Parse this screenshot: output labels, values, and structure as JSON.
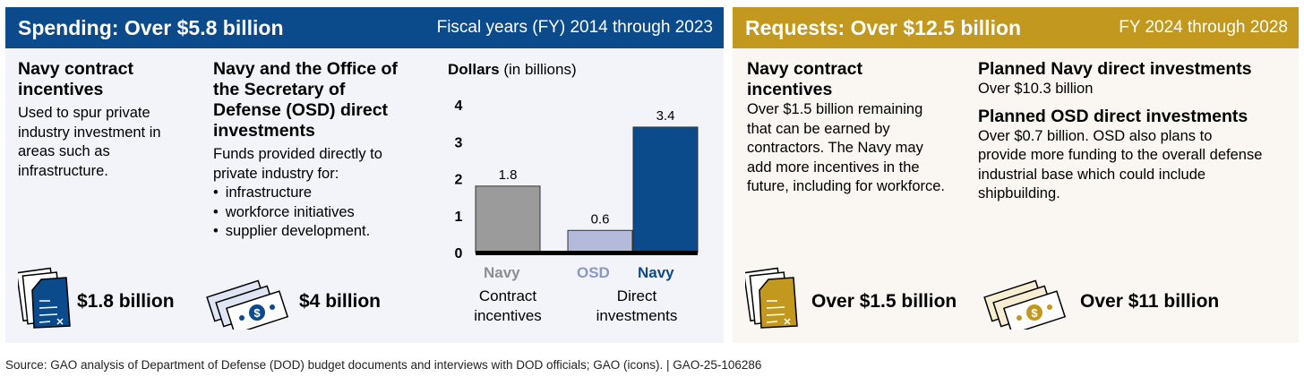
{
  "spending": {
    "title": "Spending: Over $5.8 billion",
    "subtitle": "Fiscal years (FY) 2014 through 2023",
    "incentives": {
      "heading": "Navy contract incentives",
      "text": "Used to spur private industry investment in areas such as infrastructure.",
      "amount": "$1.8 billion",
      "icon": "contract-document-icon"
    },
    "direct": {
      "heading": "Navy and the Office of the Secretary of Defense (OSD) direct investments",
      "intro": "Funds provided directly to private industry for:",
      "bullets": [
        "infrastructure",
        "workforce initiatives",
        "supplier development."
      ],
      "amount": "$4 billion",
      "icon": "money-stack-icon"
    }
  },
  "requests": {
    "title": "Requests: Over $12.5 billion",
    "subtitle": "FY 2024 through 2028",
    "incentives": {
      "heading": "Navy contract incentives",
      "text": "Over $1.5 billion remaining that can be earned by contractors. The Navy may add more incentives in the future, including for workforce.",
      "amount": "Over $1.5 billion",
      "icon": "contract-document-icon"
    },
    "navy": {
      "heading": "Planned Navy direct investments",
      "text": "Over $10.3 billion"
    },
    "osd": {
      "heading": "Planned OSD direct investments",
      "text": "Over $0.7 billion. OSD also plans to provide more funding to the overall defense industrial base which could include shipbuilding."
    },
    "amount": "Over $11 billion",
    "icon": "money-stack-icon"
  },
  "chart_data": {
    "type": "bar",
    "ylabel_bold": "Dollars",
    "ylabel_rest": " (in billions)",
    "ylim": [
      0,
      4
    ],
    "yticks": [
      "0",
      "1",
      "2",
      "3",
      "4"
    ],
    "bars": [
      {
        "series": "Navy",
        "group": "Contract incentives",
        "value": 1.8,
        "label": "1.8",
        "color": "#9b9b9b"
      },
      {
        "series": "OSD",
        "group": "Direct investments",
        "value": 0.6,
        "label": "0.6",
        "color": "#b4bad9"
      },
      {
        "series": "Navy",
        "group": "Direct investments",
        "value": 3.4,
        "label": "3.4",
        "color": "#0b4a8b"
      }
    ],
    "series_labels": [
      {
        "text": "Navy",
        "color": "#8e8e8e"
      },
      {
        "text": "OSD",
        "color": "#8d96c7"
      },
      {
        "text": "Navy",
        "color": "#0b4a8b"
      }
    ],
    "categories": [
      "Contract incentives",
      "Direct investments"
    ]
  },
  "colors": {
    "spending": "#0b4a8b",
    "requests": "#c2981f"
  },
  "source": "Source: GAO analysis of Department of Defense (DOD) budget documents and interviews with DOD officials; GAO (icons).  |  GAO-25-106286"
}
